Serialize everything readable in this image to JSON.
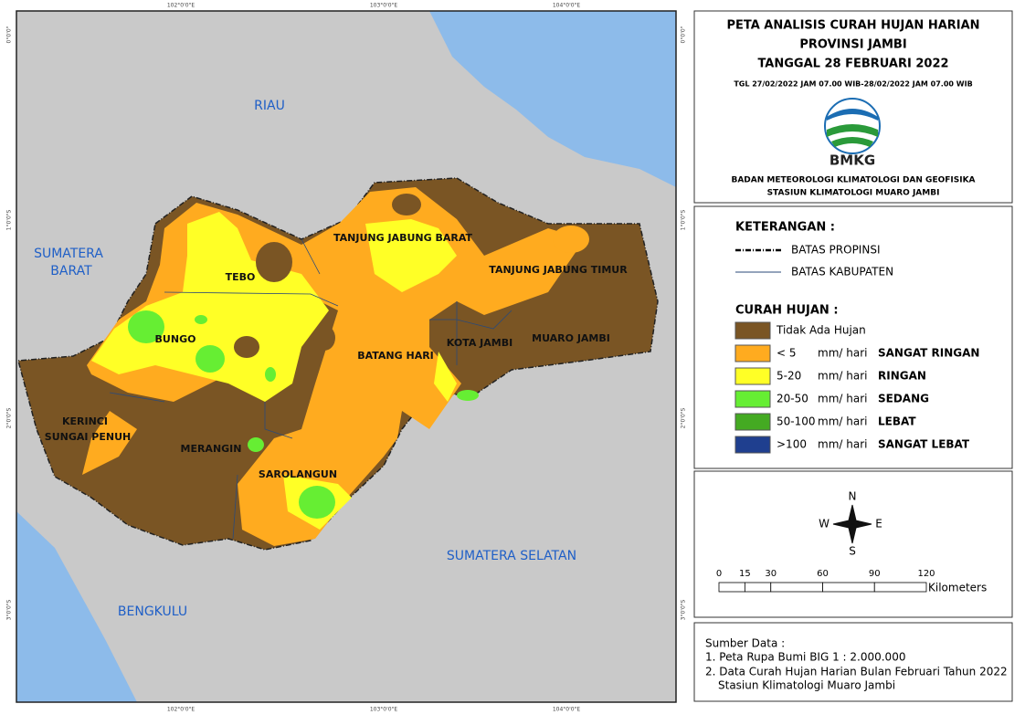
{
  "map": {
    "title": [
      "PETA ANALISIS CURAH HUJAN HARIAN",
      "PROVINSI JAMBI",
      "TANGGAL 28 FEBRUARI 2022"
    ],
    "period": "TGL 27/02/2022 JAM 07.00 WIB-28/02/2022 JAM 07.00 WIB",
    "logo_text": "BMKG",
    "organization": [
      "BADAN METEOROLOGI KLIMATOLOGI DAN GEOFISIKA",
      "STASIUN KLIMATOLOGI MUARO JAMBI"
    ],
    "legend": {
      "heading": "KETERANGAN :",
      "boundaries": [
        "BATAS PROPINSI",
        "BATAS KABUPATEN"
      ],
      "rain_heading": "CURAH HUJAN :",
      "unit": "mm/ hari",
      "items": [
        {
          "color": "#7a5524",
          "label": "Tidak Ada Hujan"
        },
        {
          "color": "#ffab1f",
          "label": "< 5",
          "category": "SANGAT RINGAN"
        },
        {
          "color": "#ffff26",
          "label": "5-20",
          "category": "RINGAN"
        },
        {
          "color": "#66ee33",
          "label": "20-50",
          "category": "SEDANG"
        },
        {
          "color": "#44aa22",
          "label": "50-100",
          "category": "LEBAT"
        },
        {
          "color": "#1f3f8f",
          "label": ">100",
          "category": "SANGAT LEBAT"
        }
      ]
    },
    "compass": {
      "n": "N",
      "s": "S",
      "e": "E",
      "w": "W"
    },
    "scale_bar": {
      "ticks": [
        0,
        15,
        30,
        60,
        90,
        120
      ],
      "unit": "Kilometers"
    },
    "sources": [
      "Sumber Data :",
      "1. Peta Rupa Bumi BIG 1 : 2.000.000",
      "2. Data Curah Hujan Harian Bulan Februari Tahun 2022",
      "Stasiun Klimatologi Muaro Jambi"
    ],
    "longitudes": [
      "102°0'0\"E",
      "103°0'0\"E",
      "104°0'0\"E"
    ],
    "latitudes": [
      "0°0'0\"",
      "1°0'0\"S",
      "2°0'0\"S",
      "3°0'0\"S"
    ],
    "provinces": [
      "RIAU",
      "SUMATERA BARAT",
      "SUMATERA SELATAN",
      "BENGKULU"
    ],
    "regencies": [
      "TANJUNG JABUNG BARAT",
      "TEBO",
      "TANJUNG JABUNG TIMUR",
      "BUNGO",
      "KOTA JAMBI",
      "MUARO JAMBI",
      "BATANG HARI",
      "KERINCI",
      "SUNGAI PENUH",
      "MERANGIN",
      "SAROLANGUN"
    ]
  }
}
